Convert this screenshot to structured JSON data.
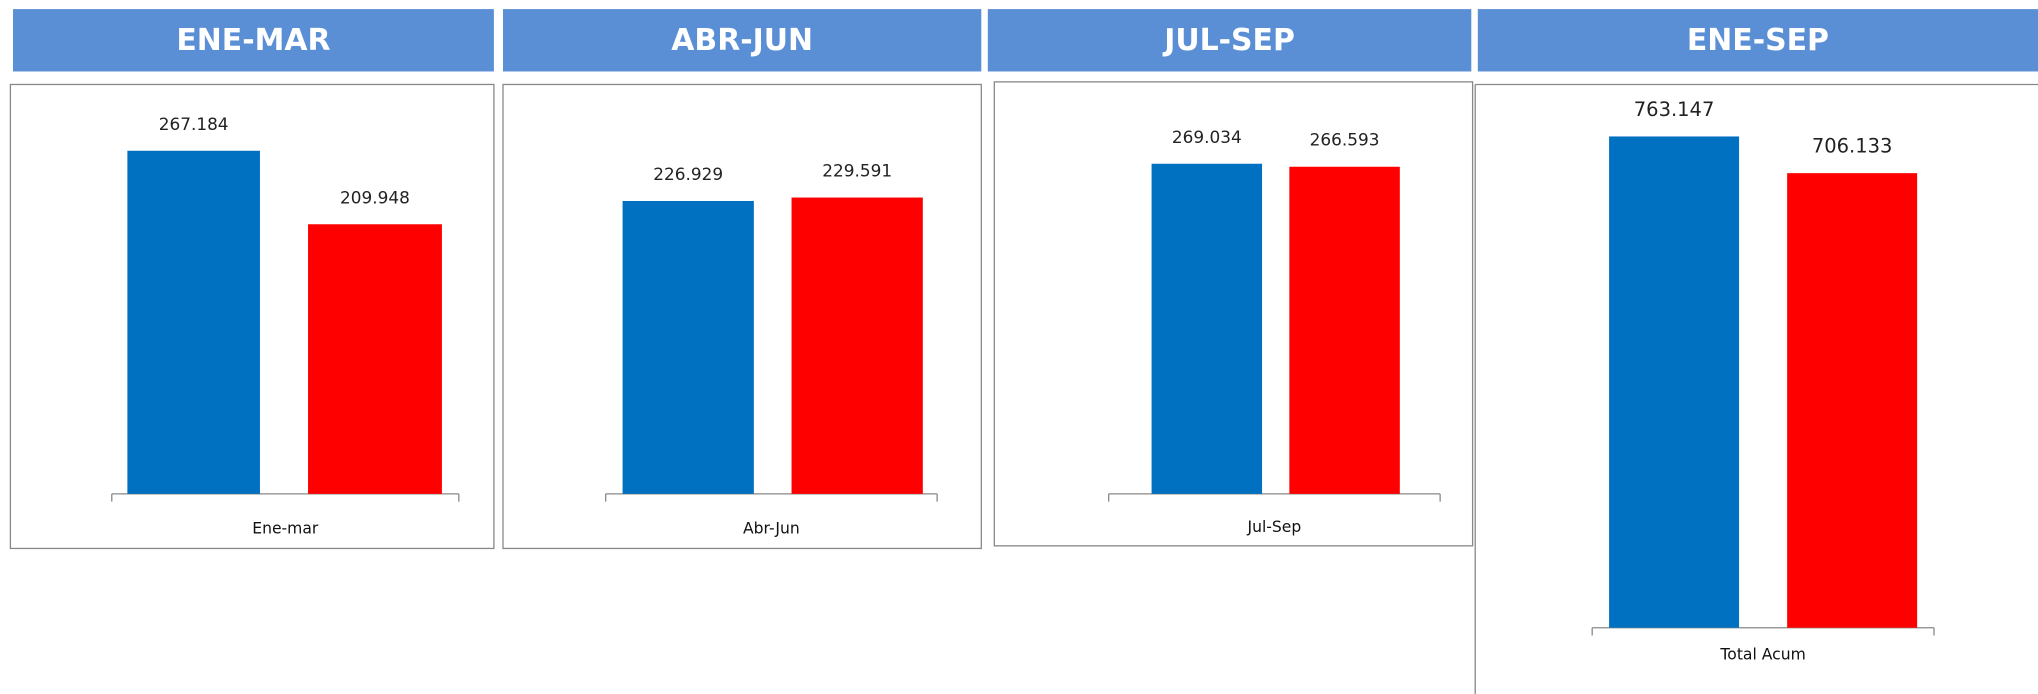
{
  "chart_data": [
    {
      "type": "bar",
      "title": "ENE-MAR",
      "categories": [
        "Ene-mar"
      ],
      "series": [
        {
          "color": "#0070c0",
          "values": [
            267184
          ],
          "value_labels": [
            "267.184"
          ]
        },
        {
          "color": "#ff0000",
          "values": [
            209948
          ],
          "value_labels": [
            "209.948"
          ]
        }
      ]
    },
    {
      "type": "bar",
      "title": "ABR-JUN",
      "categories": [
        "Abr-Jun"
      ],
      "series": [
        {
          "color": "#0070c0",
          "values": [
            226929
          ],
          "value_labels": [
            "226.929"
          ]
        },
        {
          "color": "#ff0000",
          "values": [
            229591
          ],
          "value_labels": [
            "229.591"
          ]
        }
      ]
    },
    {
      "type": "bar",
      "title": "JUL-SEP",
      "categories": [
        "Jul-Sep"
      ],
      "series": [
        {
          "color": "#0070c0",
          "values": [
            269034
          ],
          "value_labels": [
            "269.034"
          ]
        },
        {
          "color": "#ff0000",
          "values": [
            266593
          ],
          "value_labels": [
            "266.593"
          ]
        }
      ]
    },
    {
      "type": "bar",
      "title": "ENE-SEP",
      "categories": [
        "Total Acum"
      ],
      "series": [
        {
          "color": "#0070c0",
          "values": [
            763147
          ],
          "value_labels": [
            "763.147"
          ]
        },
        {
          "color": "#ff0000",
          "values": [
            706133
          ],
          "value_labels": [
            "706.133"
          ]
        }
      ]
    }
  ]
}
